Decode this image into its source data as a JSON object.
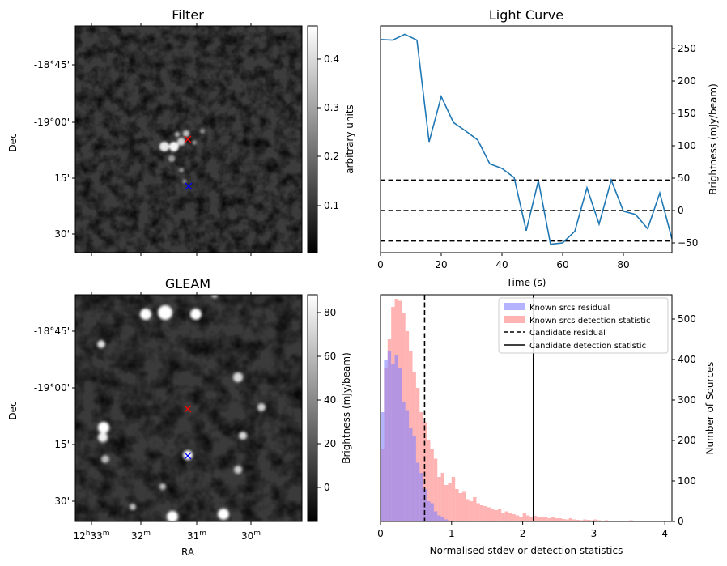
{
  "figure": {
    "panels": {
      "filter": {
        "title": "Filter",
        "ylabel": "Dec",
        "yticks": [
          "-18°45'",
          "-19°00'",
          "15'",
          "30'"
        ],
        "colorbar": {
          "label": "arbitrary units",
          "ticks": [
            "0.4",
            "0.3",
            "0.2",
            "0.1"
          ],
          "colormap": "gray"
        },
        "markers": [
          {
            "name": "candidate",
            "symbol": "x",
            "color": "#ff0000"
          },
          {
            "name": "known-source",
            "symbol": "x",
            "color": "#0000ff"
          }
        ]
      },
      "gleam": {
        "title": "GLEAM",
        "ylabel": "Dec",
        "xlabel": "RA",
        "yticks": [
          "-18°45'",
          "-19°00'",
          "15'",
          "30'"
        ],
        "xticks": [
          {
            "base": "12",
            "sup1": "h",
            "mid": "33",
            "sup2": "m"
          },
          {
            "base": "32",
            "sup2": "m"
          },
          {
            "base": "31",
            "sup2": "m"
          },
          {
            "base": "30",
            "sup2": "m"
          }
        ],
        "colorbar": {
          "label": "Brightness (mJy/beam)",
          "ticks": [
            "80",
            "60",
            "40",
            "20",
            "0"
          ],
          "colormap": "gray"
        },
        "markers": [
          {
            "name": "candidate",
            "symbol": "x",
            "color": "#ff0000"
          },
          {
            "name": "known-source",
            "symbol": "x",
            "color": "#0000ff"
          }
        ]
      }
    },
    "colors": {
      "line": "#1f77b4",
      "known_residual": "#8080ff",
      "known_detection": "#ff8080"
    }
  },
  "chart_data": [
    {
      "type": "line",
      "title": "Light Curve",
      "xlabel": "Time (s)",
      "ylabel": "Brightness (mJy/beam)",
      "xlim": [
        0,
        96
      ],
      "ylim": [
        -65,
        285
      ],
      "xticks": [
        0,
        20,
        40,
        60,
        80
      ],
      "yticks": [
        -50,
        0,
        50,
        100,
        150,
        200,
        250
      ],
      "y_axis_side": "right",
      "series": [
        {
          "x": [
            0,
            4,
            8,
            12,
            16,
            20,
            24,
            28,
            32,
            36,
            40,
            44,
            48,
            52,
            56,
            60,
            64,
            68,
            72,
            76,
            80,
            84,
            88,
            92,
            96
          ],
          "y": [
            264,
            263,
            272,
            263,
            106,
            176,
            136,
            123,
            109,
            72,
            65,
            51,
            -31,
            46,
            -52,
            -50,
            -32,
            35,
            -21,
            47,
            -1,
            -6,
            -28,
            27,
            -44
          ]
        }
      ],
      "hlines": [
        {
          "y": 47,
          "style": "dashed",
          "color": "#000000"
        },
        {
          "y": 0,
          "style": "dashed",
          "color": "#000000"
        },
        {
          "y": -47,
          "style": "dashed",
          "color": "#000000"
        }
      ]
    },
    {
      "type": "histogram",
      "xlabel": "Normalised stdev or detection statistics",
      "ylabel": "Number of Sources",
      "xlim": [
        0,
        4.1
      ],
      "ylim": [
        0,
        560
      ],
      "xticks": [
        0,
        1,
        2,
        3,
        4
      ],
      "yticks": [
        0,
        100,
        200,
        300,
        400,
        500
      ],
      "y_axis_side": "right",
      "bin_width": 0.05,
      "series": [
        {
          "name": "Known srcs residual",
          "color": "#8080ff",
          "bin_starts": [
            0.0,
            0.05,
            0.1,
            0.15,
            0.2,
            0.25,
            0.3,
            0.35,
            0.4,
            0.45,
            0.5,
            0.55,
            0.6,
            0.65,
            0.7,
            0.75,
            0.8,
            0.85,
            0.9
          ],
          "values": [
            270,
            400,
            420,
            390,
            410,
            380,
            295,
            275,
            230,
            210,
            145,
            120,
            80,
            50,
            45,
            25,
            15,
            10,
            5
          ]
        },
        {
          "name": "Known srcs detection statistic",
          "color": "#ff8080",
          "bin_starts": [
            0.0,
            0.05,
            0.1,
            0.15,
            0.2,
            0.25,
            0.3,
            0.35,
            0.4,
            0.45,
            0.5,
            0.55,
            0.6,
            0.65,
            0.7,
            0.75,
            0.8,
            0.85,
            0.9,
            0.95,
            1.0,
            1.05,
            1.1,
            1.15,
            1.2,
            1.25,
            1.3,
            1.35,
            1.4,
            1.45,
            1.5,
            1.55,
            1.6,
            1.65,
            1.7,
            1.75,
            1.8,
            1.85,
            1.9,
            1.95,
            2.0,
            2.05,
            2.1,
            2.15,
            2.2,
            2.25,
            2.3,
            2.35,
            2.4,
            2.45,
            2.5,
            2.55,
            2.6,
            2.65,
            2.7,
            2.75,
            2.8,
            2.85,
            2.9,
            2.95,
            3.0,
            3.05,
            3.1,
            3.15,
            3.2,
            3.25,
            3.3,
            3.35,
            3.4,
            3.45,
            3.5,
            3.55,
            3.6,
            3.65,
            3.7,
            3.75,
            3.8,
            3.85,
            3.9,
            3.95,
            4.0,
            4.05
          ],
          "values": [
            180,
            380,
            450,
            530,
            550,
            545,
            515,
            470,
            420,
            370,
            330,
            270,
            245,
            200,
            180,
            155,
            110,
            120,
            90,
            95,
            110,
            80,
            70,
            75,
            55,
            50,
            60,
            45,
            40,
            38,
            35,
            30,
            28,
            30,
            22,
            25,
            20,
            18,
            15,
            12,
            22,
            15,
            12,
            14,
            10,
            12,
            10,
            8,
            12,
            8,
            8,
            6,
            5,
            8,
            5,
            4,
            3,
            5,
            4,
            3,
            5,
            3,
            2,
            3,
            2,
            2,
            2,
            2,
            2,
            1,
            3,
            2,
            2,
            1,
            1,
            2,
            1,
            1,
            1,
            1,
            1,
            1
          ]
        }
      ],
      "vlines": [
        {
          "name": "Candidate residual",
          "x": 0.62,
          "style": "dashed",
          "color": "#000000"
        },
        {
          "name": "Candidate detection statistic",
          "x": 2.15,
          "style": "solid",
          "color": "#000000"
        }
      ],
      "legend": {
        "placement": "top-right",
        "entries": [
          "Known srcs residual",
          "Known srcs detection statistic",
          "Candidate residual",
          "Candidate detection statistic"
        ]
      }
    }
  ]
}
